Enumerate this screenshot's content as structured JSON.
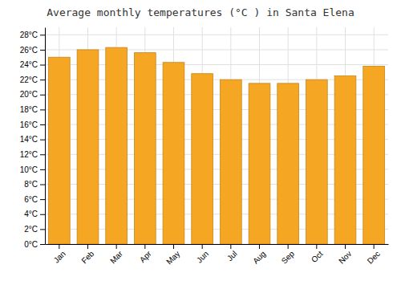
{
  "chart_data": {
    "type": "bar",
    "title": "Average monthly temperatures (°C ) in Santa Elena",
    "categories": [
      "Jan",
      "Feb",
      "Mar",
      "Apr",
      "May",
      "Jun",
      "Jul",
      "Aug",
      "Sep",
      "Oct",
      "Nov",
      "Dec"
    ],
    "values": [
      25.0,
      26.0,
      26.3,
      25.6,
      24.3,
      22.8,
      22.0,
      21.5,
      21.5,
      22.0,
      22.5,
      23.8
    ],
    "color": "#F5A623",
    "ylim": [
      0,
      29
    ],
    "yticks": [
      {
        "value": 0,
        "label": "0°C"
      },
      {
        "value": 2,
        "label": "2°C"
      },
      {
        "value": 4,
        "label": "4°C"
      },
      {
        "value": 6,
        "label": "6°C"
      },
      {
        "value": 8,
        "label": "8°C"
      },
      {
        "value": 10,
        "label": "10°C"
      },
      {
        "value": 12,
        "label": "12°C"
      },
      {
        "value": 14,
        "label": "14°C"
      },
      {
        "value": 16,
        "label": "16°C"
      },
      {
        "value": 18,
        "label": "18°C"
      },
      {
        "value": 20,
        "label": "20°C"
      },
      {
        "value": 22,
        "label": "22°C"
      },
      {
        "value": 24,
        "label": "24°C"
      },
      {
        "value": 26,
        "label": "26°C"
      },
      {
        "value": 28,
        "label": "28°C"
      }
    ],
    "grid": true
  }
}
